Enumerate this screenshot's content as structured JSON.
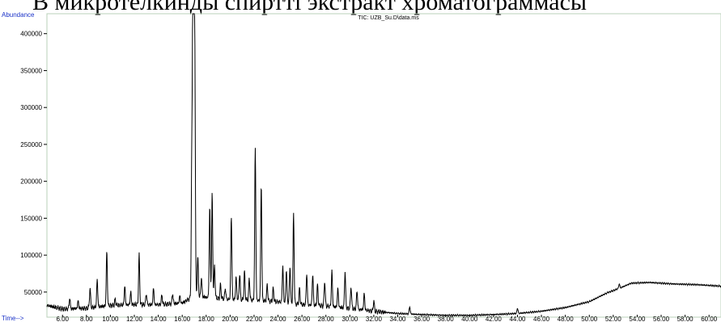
{
  "caption": "В микротелкинды спирттi экстракт хроматограммасы",
  "chart_data": {
    "type": "line",
    "title": "TIC: UZB_Su.D\\data.ms",
    "ylabel": "Abundance",
    "xlabel": "Time-->",
    "xlim": [
      4.7,
      61.0
    ],
    "ylim": [
      16000,
      427000
    ],
    "x_ticks": [
      6,
      8,
      10,
      12,
      14,
      16,
      18,
      20,
      22,
      24,
      26,
      28,
      30,
      32,
      34,
      36,
      38,
      40,
      42,
      44,
      46,
      48,
      50,
      52,
      54,
      56,
      58,
      60
    ],
    "x_tick_labels": [
      "6.00",
      "8.00",
      "10.00",
      "12.00",
      "14.00",
      "16.00",
      "18.00",
      "20.00",
      "22.00",
      "24.00",
      "26.00",
      "28.00",
      "30.00",
      "32.00",
      "34.00",
      "36.00",
      "38.00",
      "40.00",
      "42.00",
      "44.00",
      "46.00",
      "48.00",
      "50.00",
      "52.00",
      "54.00",
      "56.00",
      "58.00",
      "60.00"
    ],
    "y_ticks": [
      50000,
      100000,
      150000,
      200000,
      250000,
      300000,
      350000,
      400000
    ],
    "y_tick_labels": [
      "50000",
      "100000",
      "150000",
      "200000",
      "250000",
      "300000",
      "350000",
      "400000"
    ],
    "baseline": [
      [
        4.7,
        32000
      ],
      [
        6.0,
        27000
      ],
      [
        8.0,
        28000
      ],
      [
        10.0,
        32000
      ],
      [
        12.0,
        33000
      ],
      [
        14.0,
        33000
      ],
      [
        16.0,
        35000
      ],
      [
        17.0,
        45000
      ],
      [
        18.0,
        43000
      ],
      [
        20.0,
        40000
      ],
      [
        22.0,
        39000
      ],
      [
        24.0,
        37000
      ],
      [
        26.0,
        33000
      ],
      [
        28.0,
        31000
      ],
      [
        30.0,
        28000
      ],
      [
        32.0,
        24000
      ],
      [
        34.0,
        21000
      ],
      [
        36.0,
        19500
      ],
      [
        38.0,
        18500
      ],
      [
        40.0,
        18500
      ],
      [
        42.0,
        19500
      ],
      [
        44.0,
        21000
      ],
      [
        46.0,
        24000
      ],
      [
        48.0,
        29000
      ],
      [
        50.0,
        37000
      ],
      [
        51.5,
        49000
      ],
      [
        52.5,
        55000
      ],
      [
        53.5,
        62000
      ],
      [
        55.0,
        63000
      ],
      [
        57.0,
        61000
      ],
      [
        59.0,
        60000
      ],
      [
        61.0,
        58000
      ]
    ],
    "peaks": [
      [
        6.6,
        42000
      ],
      [
        7.3,
        38000
      ],
      [
        8.3,
        55000
      ],
      [
        8.9,
        67000
      ],
      [
        9.7,
        105000
      ],
      [
        10.4,
        40000
      ],
      [
        11.2,
        58000
      ],
      [
        11.7,
        50000
      ],
      [
        12.4,
        100000
      ],
      [
        13.0,
        48000
      ],
      [
        13.6,
        55000
      ],
      [
        14.3,
        46000
      ],
      [
        15.2,
        48000
      ],
      [
        15.8,
        45000
      ],
      [
        16.8,
        228000
      ],
      [
        16.9,
        420000
      ],
      [
        16.95,
        425000
      ],
      [
        17.05,
        375000
      ],
      [
        17.3,
        98000
      ],
      [
        17.6,
        70000
      ],
      [
        18.3,
        165000
      ],
      [
        18.5,
        183000
      ],
      [
        18.7,
        86000
      ],
      [
        19.2,
        60000
      ],
      [
        19.6,
        55000
      ],
      [
        20.1,
        153000
      ],
      [
        20.5,
        70000
      ],
      [
        20.8,
        75000
      ],
      [
        21.2,
        78000
      ],
      [
        21.6,
        68000
      ],
      [
        22.1,
        246000
      ],
      [
        22.6,
        195000
      ],
      [
        23.1,
        60000
      ],
      [
        23.6,
        55000
      ],
      [
        24.4,
        85000
      ],
      [
        24.7,
        80000
      ],
      [
        25.0,
        85000
      ],
      [
        25.3,
        156000
      ],
      [
        25.8,
        55000
      ],
      [
        26.4,
        75000
      ],
      [
        26.9,
        74000
      ],
      [
        27.3,
        60000
      ],
      [
        27.9,
        65000
      ],
      [
        28.5,
        78000
      ],
      [
        29.0,
        55000
      ],
      [
        29.6,
        78000
      ],
      [
        30.1,
        58000
      ],
      [
        30.6,
        52000
      ],
      [
        31.2,
        48000
      ],
      [
        32.0,
        38000
      ],
      [
        35.0,
        30000
      ],
      [
        44.0,
        28000
      ],
      [
        52.5,
        61000
      ],
      [
        57.4,
        55000
      ]
    ]
  }
}
